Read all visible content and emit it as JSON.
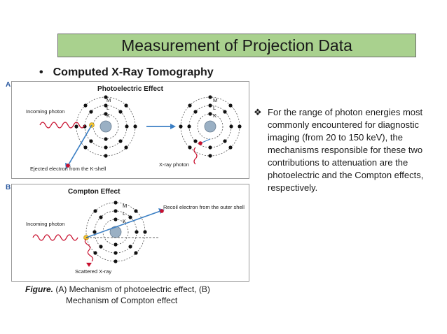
{
  "title": "Measurement of Projection Data",
  "bullet": "Computed X-Ray Tomography",
  "panel_a": {
    "letter": "A",
    "title": "Photoelectric Effect",
    "incoming": "Incoming photon",
    "ejected": "Ejected electron from the K-shell",
    "xray": "X-ray photon",
    "shell_m": "M",
    "shell_l": "L",
    "shell_k": "K"
  },
  "panel_b": {
    "letter": "B",
    "title": "Compton Effect",
    "incoming": "Incoming photon",
    "recoil": "Recoil electron from the outer shell",
    "scattered": "Scattered X-ray",
    "shell_m": "M",
    "shell_l": "L",
    "shell_k": "K"
  },
  "caption": {
    "prefix": "Figure.",
    "line1": " (A) Mechanism of photoelectric effect, (B)",
    "line2": "Mechanism of Compton effect"
  },
  "side_note": {
    "marker": "❖",
    "text": "For the range of photon energies most commonly encountered for diagnostic imaging (from 20 to 150 keV), the mechanisms responsible for these two contributions to attenuation are the photoelectric and the Compton effects, respectively."
  },
  "colors": {
    "title_bg": "#a9d18e",
    "arrow_blue": "#3b7fc4",
    "photon_red": "#c8102e",
    "nucleus": "#9ab0c4",
    "hole": "#f2c12e",
    "letter": "#2c5aa0"
  }
}
